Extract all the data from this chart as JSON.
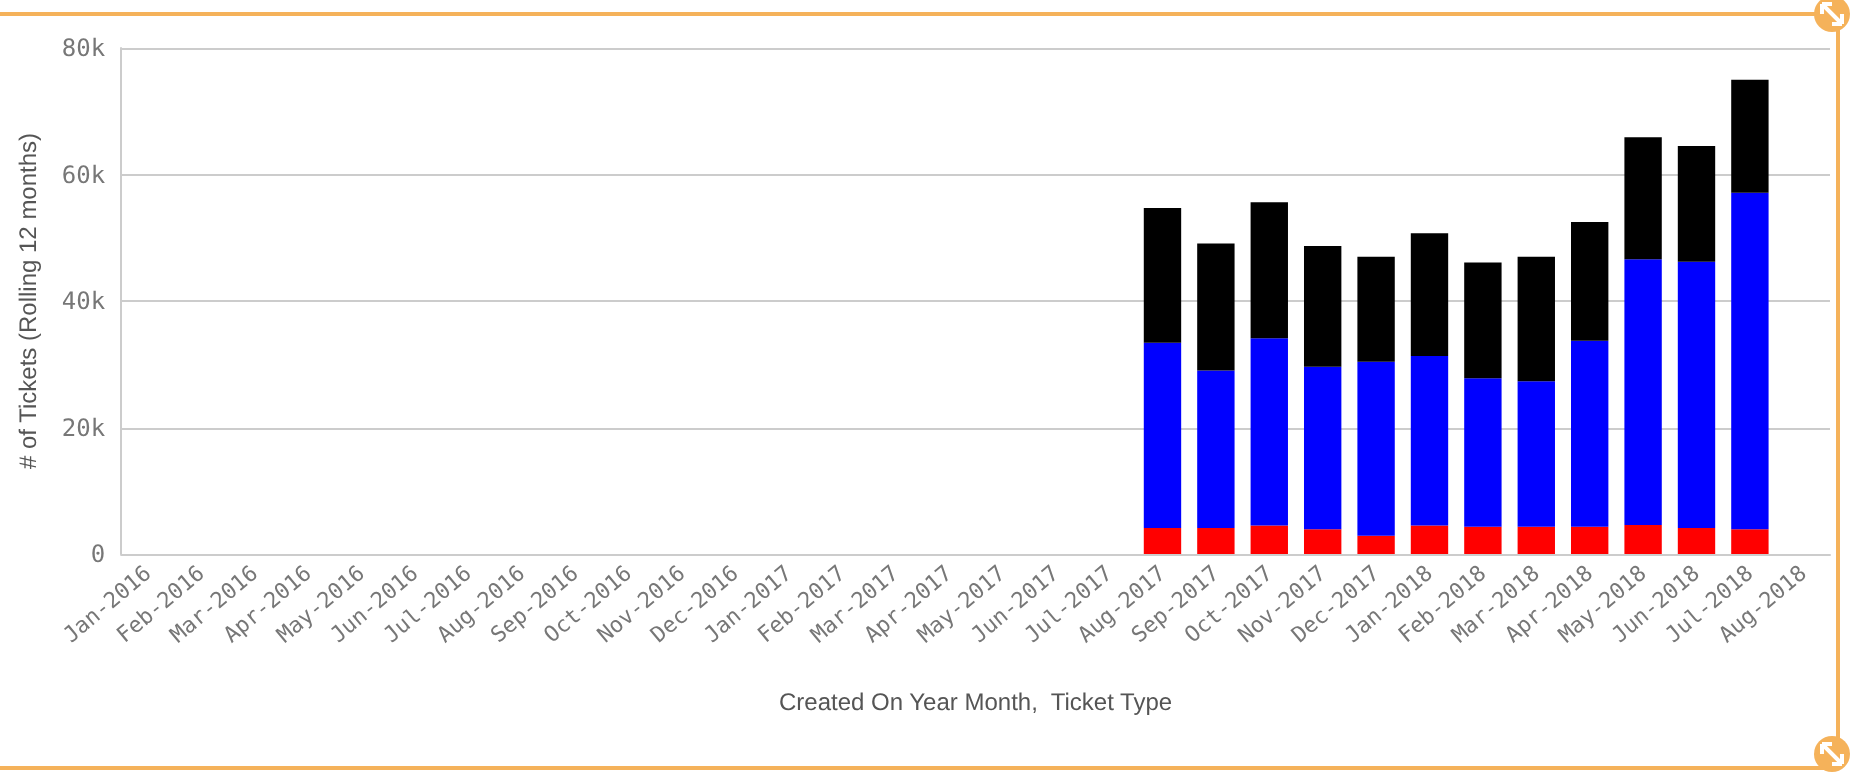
{
  "chart_data": {
    "type": "bar",
    "stacked": true,
    "xlabel": "Created On Year Month,  Ticket Type",
    "ylabel": "# of Tickets (Rolling 12 months)",
    "categories": [
      "Jan-2016",
      "Feb-2016",
      "Mar-2016",
      "Apr-2016",
      "May-2016",
      "Jun-2016",
      "Jul-2016",
      "Aug-2016",
      "Sep-2016",
      "Oct-2016",
      "Nov-2016",
      "Dec-2016",
      "Jan-2017",
      "Feb-2017",
      "Mar-2017",
      "Apr-2017",
      "May-2017",
      "Jun-2017",
      "Jul-2017",
      "Aug-2017",
      "Sep-2017",
      "Oct-2017",
      "Nov-2017",
      "Dec-2017",
      "Jan-2018",
      "Feb-2018",
      "Mar-2018",
      "Apr-2018",
      "May-2018",
      "Jun-2018",
      "Jul-2018",
      "Aug-2018"
    ],
    "series": [
      {
        "color": "#ff0000",
        "values": [
          null,
          null,
          null,
          null,
          null,
          null,
          null,
          null,
          null,
          null,
          null,
          null,
          null,
          null,
          null,
          null,
          null,
          null,
          null,
          4100,
          4100,
          4500,
          3900,
          2900,
          4500,
          4300,
          4300,
          4300,
          4600,
          4100,
          3900,
          null
        ]
      },
      {
        "color": "#0000ff",
        "values": [
          null,
          null,
          null,
          null,
          null,
          null,
          null,
          null,
          null,
          null,
          null,
          null,
          null,
          null,
          null,
          null,
          null,
          null,
          null,
          29300,
          24900,
          29600,
          25700,
          27500,
          26800,
          23500,
          23000,
          29400,
          42000,
          42100,
          53200,
          null
        ]
      },
      {
        "color": "#000000",
        "values": [
          null,
          null,
          null,
          null,
          null,
          null,
          null,
          null,
          null,
          null,
          null,
          null,
          null,
          null,
          null,
          null,
          null,
          null,
          null,
          21300,
          20100,
          21500,
          19100,
          16600,
          19400,
          18300,
          19700,
          18800,
          19300,
          18300,
          17900,
          null
        ]
      }
    ],
    "ylim": [
      0,
      80000
    ],
    "yticks": [
      0,
      {
        "value": 20000,
        "label": "20k"
      },
      {
        "value": 40000,
        "label": "40k"
      },
      {
        "value": 60000,
        "label": "60k"
      },
      {
        "value": 80000,
        "label": "80k"
      }
    ],
    "grid": "y"
  }
}
